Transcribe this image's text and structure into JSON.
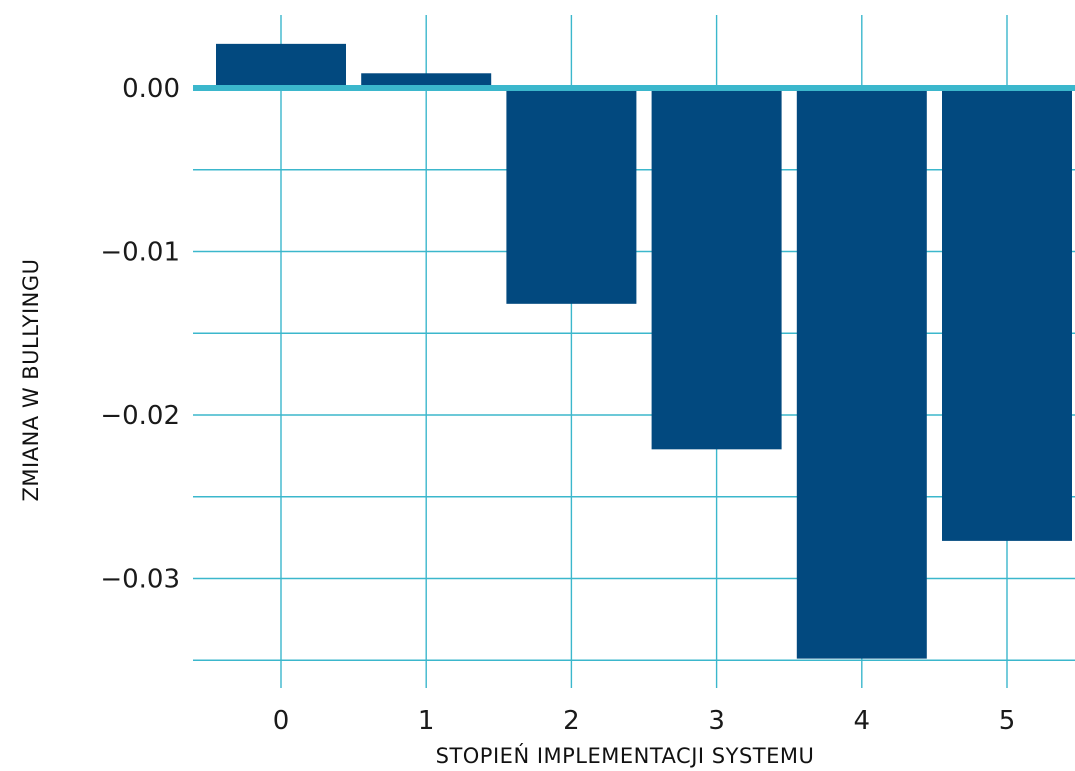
{
  "chart_data": {
    "type": "bar",
    "xlabel": "STOPIEŃ IMPLEMENTACJI SYSTEMU",
    "ylabel": "ZMIANA W BULLYINGU",
    "categories": [
      "0",
      "1",
      "2",
      "3",
      "4",
      "5"
    ],
    "values": [
      0.0027,
      0.0009,
      -0.0132,
      -0.0221,
      -0.0349,
      -0.0277
    ],
    "ylim": [
      -0.035,
      0.0045
    ],
    "yticks": [
      0.0,
      -0.01,
      -0.02,
      -0.03
    ],
    "ytick_labels": [
      "0.00",
      "−0.01",
      "−0.02",
      "−0.03"
    ],
    "grid": true,
    "colors": {
      "bar": "#02497f",
      "grid": "#3bb7cc",
      "zero_line": "#3bb7cc"
    }
  }
}
